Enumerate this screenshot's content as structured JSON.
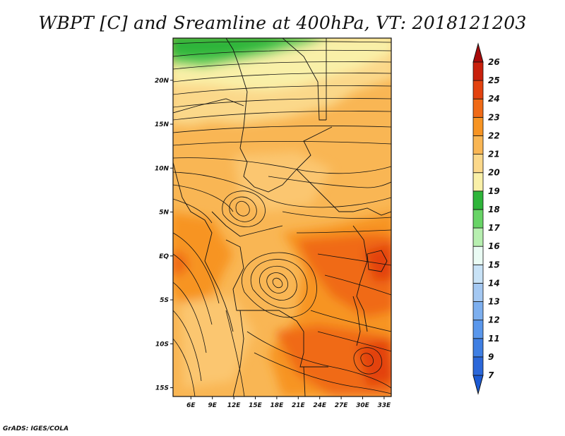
{
  "header": {
    "title": "WBPT [C] and Sreamline at 400hPa, VT: 2018121203"
  },
  "footer": {
    "credit": "GrADS: IGES/COLA"
  },
  "map": {
    "lat_labels": [
      "20N",
      "15N",
      "10N",
      "5N",
      "EQ",
      "5S",
      "10S",
      "15S"
    ],
    "lat_values": [
      20,
      15,
      10,
      5,
      0,
      -5,
      -10,
      -15
    ],
    "lon_labels": [
      "6E",
      "9E",
      "12E",
      "15E",
      "18E",
      "21E",
      "24E",
      "27E",
      "30E",
      "33E"
    ],
    "lon_values": [
      6,
      9,
      12,
      15,
      18,
      21,
      24,
      27,
      30,
      33
    ],
    "lon_range": [
      3.5,
      34
    ],
    "lat_range": [
      -16,
      24.8
    ]
  },
  "colorbar": {
    "levels": [
      "7",
      "9",
      "11",
      "12",
      "13",
      "14",
      "15",
      "16",
      "17",
      "18",
      "19",
      "20",
      "21",
      "22",
      "23",
      "24",
      "25",
      "26"
    ],
    "colors": [
      "#2b67d9",
      "#3f7fe3",
      "#5a97ec",
      "#7dafef",
      "#a4c8f2",
      "#c8e2f6",
      "#eafbf4",
      "#b7efb0",
      "#68d466",
      "#2fb53a",
      "#f9f0a8",
      "#fbd88a",
      "#f9b654",
      "#f79423",
      "#f06a16",
      "#e3420f",
      "#c8200c"
    ],
    "under_color": "#1c5ad3",
    "over_color": "#a80a0a"
  }
}
